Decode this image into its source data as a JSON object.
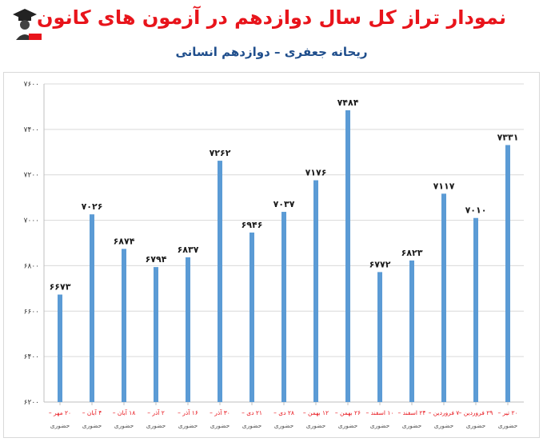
{
  "header": {
    "title": "نمودار تراز کل سال دوازدهم در آزمون های کانون",
    "subtitle": "ریحانه جعفری – دوازدهم انسانی"
  },
  "colors": {
    "title": "#e8141b",
    "subtitle": "#1f4e8c",
    "bar": "#5b9bd5",
    "grid": "#d9d9d9"
  },
  "chart_data": {
    "type": "bar",
    "title": "نمودار تراز کل سال دوازدهم در آزمون های کانون",
    "subtitle": "ریحانه جعفری – دوازدهم انسانی",
    "xlabel": "",
    "ylabel": "",
    "ylim": [
      6200,
      7600
    ],
    "yticks": [
      6200,
      6400,
      6600,
      6800,
      7000,
      7200,
      7400,
      7600
    ],
    "ytick_labels": [
      "۶۲۰۰",
      "۶۴۰۰",
      "۶۶۰۰",
      "۶۸۰۰",
      "۷۰۰۰",
      "۷۲۰۰",
      "۷۴۰۰",
      "۷۶۰۰"
    ],
    "grid": true,
    "legend": "none",
    "categories": [
      "۲۰ مهر –",
      "۴ آبان –",
      "۱۸ آبان –",
      "۲ آذر –",
      "۱۶ آذر –",
      "۳۰ آذر –",
      "۲۱ دی –",
      "۲۸ دی –",
      "۱۲ بهمن –",
      "۲۶ بهمن –",
      "۱۰ اسفند –",
      "۲۴ اسفند –",
      "۷ فروردین –",
      "۲۹ فروردین –",
      "۲۰ تیر –"
    ],
    "category_sublabel": "حضوری",
    "values": [
      6673,
      7026,
      6874,
      6794,
      6837,
      7262,
      6946,
      7037,
      7176,
      7484,
      6772,
      6823,
      7117,
      7010,
      7331
    ],
    "value_labels": [
      "۶۶۷۳",
      "۷۰۲۶",
      "۶۸۷۴",
      "۶۷۹۴",
      "۶۸۳۷",
      "۷۲۶۲",
      "۶۹۴۶",
      "۷۰۳۷",
      "۷۱۷۶",
      "۷۴۸۴",
      "۶۷۷۲",
      "۶۸۲۳",
      "۷۱۱۷",
      "۷۰۱۰",
      "۷۳۳۱"
    ]
  }
}
